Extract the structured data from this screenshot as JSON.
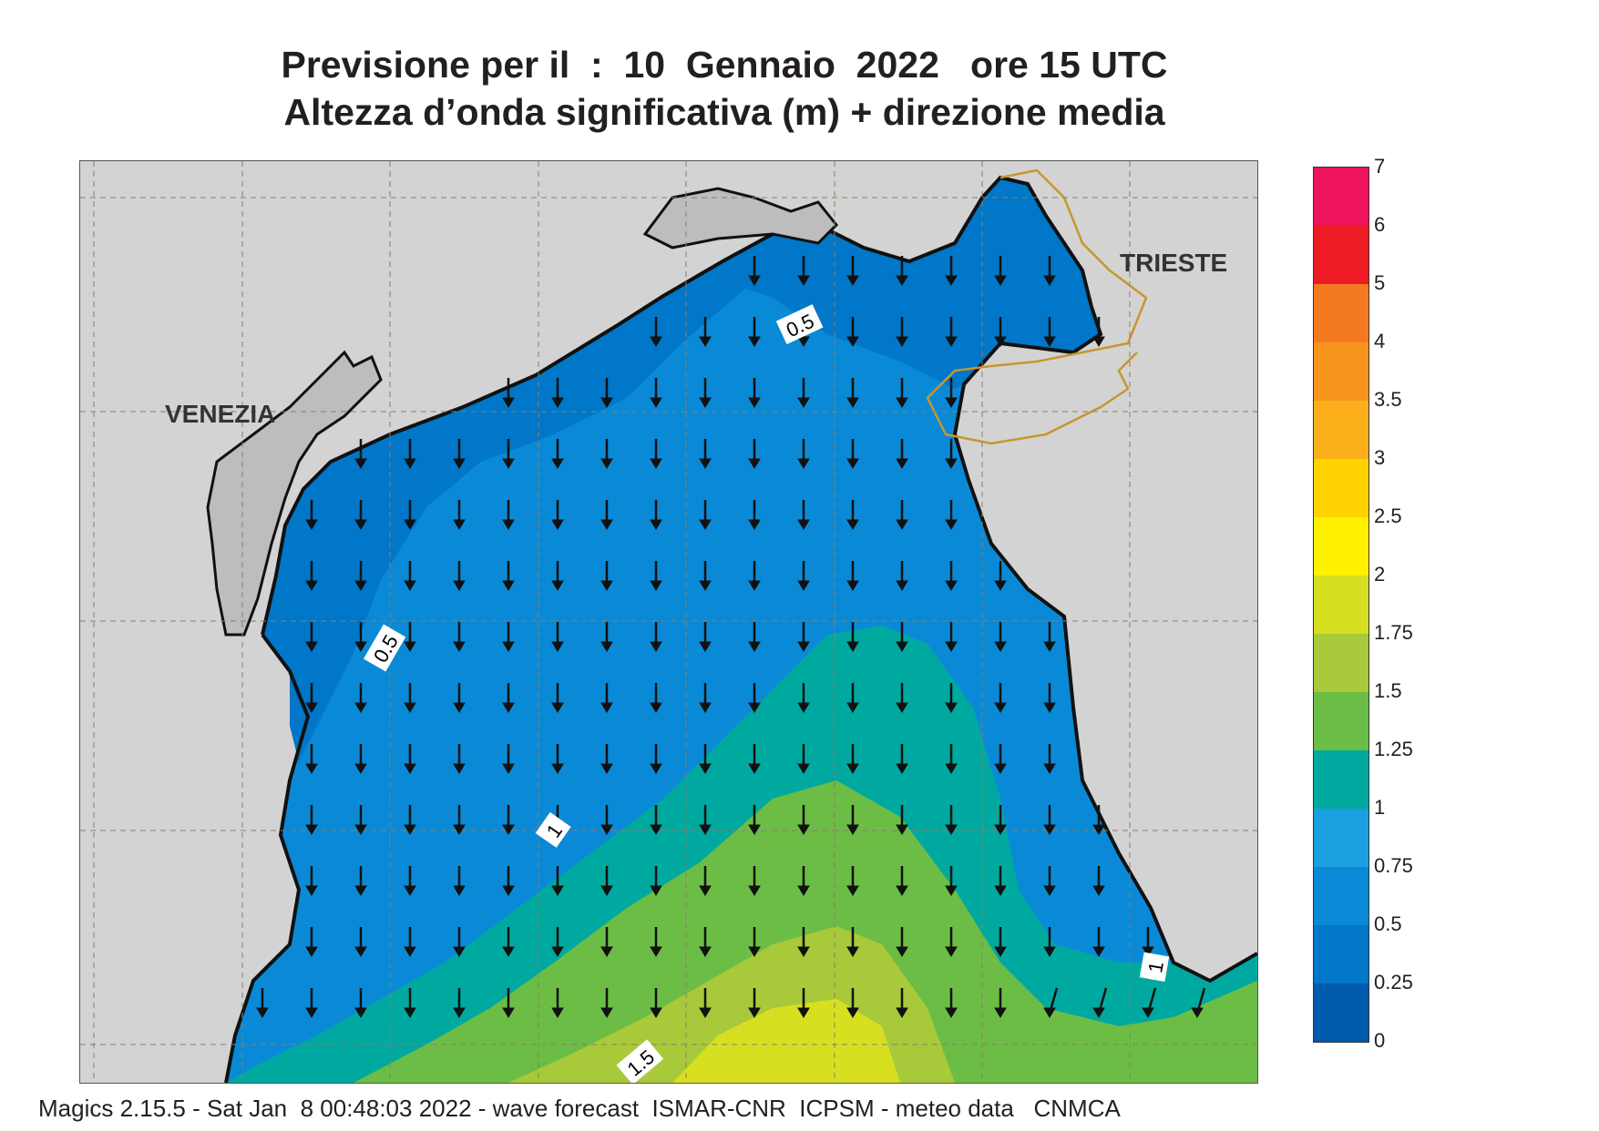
{
  "title": {
    "line1": "Previsione per il  :  10  Gennaio  2022   ore 15 UTC",
    "line2": "Altezza d’onda significativa (m) + direzione media"
  },
  "map": {
    "cities": [
      {
        "id": "venezia",
        "name": "VENEZIA"
      },
      {
        "id": "trieste",
        "name": "TRIESTE"
      }
    ],
    "contour_labels": [
      "0.5",
      "0.5",
      "1",
      "1",
      "1.5"
    ],
    "land_color": "#d3d3d3",
    "border_color": "#c8962e",
    "wave_direction": "N to S (arrows pointing south)"
  },
  "colorbar": {
    "levels": [
      "0",
      "0.25",
      "0.5",
      "0.75",
      "1",
      "1.25",
      "1.5",
      "1.75",
      "2",
      "2.5",
      "3",
      "3.5",
      "4",
      "5",
      "6",
      "7"
    ],
    "colors": [
      "#005aad",
      "#0077c8",
      "#0a8ad6",
      "#1b9fe0",
      "#00a9a0",
      "#6cbd45",
      "#a8c93a",
      "#d6e021",
      "#fff100",
      "#ffd200",
      "#fbb01b",
      "#f7941d",
      "#f47a20",
      "#ed1c24",
      "#ed145b"
    ]
  },
  "footer": "Magics 2.15.5 - Sat Jan  8 00:48:03 2022 - wave forecast  ISMAR-CNR  ICPSM - meteo data   CNMCA"
}
